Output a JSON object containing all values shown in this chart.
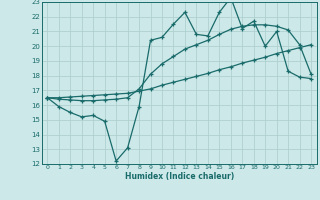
{
  "xlabel": "Humidex (Indice chaleur)",
  "background_color": "#cce8e8",
  "grid_color": "#b0d0d0",
  "line_color": "#1a6b6b",
  "xlim": [
    -0.5,
    23.5
  ],
  "ylim": [
    12,
    23
  ],
  "xticks": [
    0,
    1,
    2,
    3,
    4,
    5,
    6,
    7,
    8,
    9,
    10,
    11,
    12,
    13,
    14,
    15,
    16,
    17,
    18,
    19,
    20,
    21,
    22,
    23
  ],
  "yticks": [
    12,
    13,
    14,
    15,
    16,
    17,
    18,
    19,
    20,
    21,
    22,
    23
  ],
  "series1_x": [
    0,
    1,
    2,
    3,
    4,
    5,
    6,
    7,
    8,
    9,
    10,
    11,
    12,
    13,
    14,
    15,
    16,
    17,
    18,
    19,
    20,
    21,
    22,
    23
  ],
  "series1_y": [
    16.5,
    15.9,
    15.5,
    15.2,
    15.3,
    14.9,
    12.2,
    13.1,
    15.9,
    20.4,
    20.6,
    21.5,
    22.3,
    20.8,
    20.7,
    22.3,
    23.3,
    21.2,
    21.7,
    20.0,
    21.0,
    18.3,
    17.9,
    17.8
  ],
  "series2_x": [
    0,
    1,
    2,
    3,
    4,
    5,
    6,
    7,
    8,
    9,
    10,
    11,
    12,
    13,
    14,
    15,
    16,
    17,
    18,
    19,
    20,
    21,
    22,
    23
  ],
  "series2_y": [
    16.5,
    16.5,
    16.55,
    16.6,
    16.65,
    16.7,
    16.75,
    16.8,
    16.95,
    17.1,
    17.35,
    17.55,
    17.75,
    17.95,
    18.15,
    18.4,
    18.6,
    18.85,
    19.05,
    19.25,
    19.5,
    19.7,
    19.9,
    20.1
  ],
  "series3_x": [
    0,
    1,
    2,
    3,
    4,
    5,
    6,
    7,
    8,
    9,
    10,
    11,
    12,
    13,
    14,
    15,
    16,
    17,
    18,
    19,
    20,
    21,
    22,
    23
  ],
  "series3_y": [
    16.5,
    16.4,
    16.35,
    16.3,
    16.3,
    16.35,
    16.4,
    16.5,
    17.1,
    18.1,
    18.8,
    19.3,
    19.8,
    20.1,
    20.4,
    20.8,
    21.15,
    21.35,
    21.45,
    21.45,
    21.35,
    21.1,
    20.1,
    18.1
  ]
}
